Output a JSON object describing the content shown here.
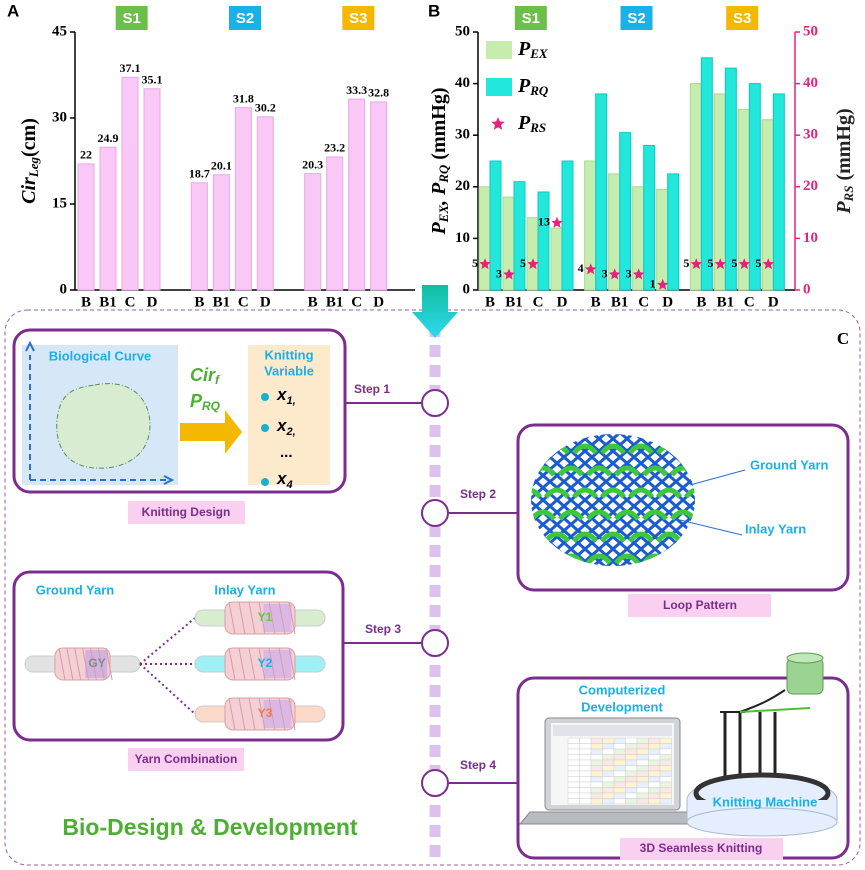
{
  "chart_data": [
    {
      "type": "bar",
      "panel_label": "A",
      "ylabel": [
        {
          "text": "Cir"
        },
        {
          "text": "Leg",
          "sub": true
        },
        {
          "text": "(cm)"
        }
      ],
      "groups": [
        {
          "name": "S1",
          "color": "#6cc04a"
        },
        {
          "name": "S2",
          "color": "#1ab0e8"
        },
        {
          "name": "S3",
          "color": "#f5b800"
        }
      ],
      "categories": [
        "B",
        "B1",
        "C",
        "D",
        "B",
        "B1",
        "C",
        "D",
        "B",
        "B1",
        "C",
        "D"
      ],
      "values": [
        22,
        24.9,
        37.1,
        35.1,
        18.7,
        20.1,
        31.8,
        30.2,
        20.3,
        23.2,
        33.3,
        32.8
      ],
      "color": "#f9c8f6",
      "ylim": [
        0,
        45
      ],
      "yticks": [
        0,
        15,
        30,
        45
      ]
    },
    {
      "type": "bar",
      "panel_label": "B",
      "ylabel": [
        {
          "text": "P"
        },
        {
          "text": "EX",
          "sub": true
        },
        {
          "text": ", P"
        },
        {
          "text": "RQ",
          "sub": true
        },
        {
          "text": " (mmHg)"
        }
      ],
      "y2label": [
        {
          "text": "P"
        },
        {
          "text": "RS",
          "sub": true
        },
        {
          "text": " (mmHg)"
        }
      ],
      "groups": [
        {
          "name": "S1",
          "color": "#6cc04a"
        },
        {
          "name": "S2",
          "color": "#1ab0e8"
        },
        {
          "name": "S3",
          "color": "#f5b800"
        }
      ],
      "categories": [
        "B",
        "B1",
        "C",
        "D",
        "B",
        "B1",
        "C",
        "D",
        "B",
        "B1",
        "C",
        "D"
      ],
      "series": [
        {
          "name": "P",
          "sub": "EX",
          "color": "#c6ecae",
          "values": [
            20,
            18,
            14,
            12,
            25,
            22.5,
            20,
            19.5,
            40,
            38,
            35,
            33
          ]
        },
        {
          "name": "P",
          "sub": "RQ",
          "color": "#22e8dc",
          "values": [
            25,
            21,
            19,
            25,
            38,
            30.5,
            28,
            22.5,
            45,
            43,
            40,
            38
          ]
        },
        {
          "name": "P",
          "sub": "RS",
          "color": "#e8207e",
          "marker": "star",
          "axis": "y2",
          "values": [
            5,
            3,
            5,
            13,
            4,
            3,
            3,
            1,
            5,
            5,
            5,
            5
          ]
        }
      ],
      "legend": "upper left",
      "ylim": [
        0,
        50
      ],
      "yticks": [
        0,
        10,
        20,
        30,
        40,
        50
      ],
      "y2lim": [
        0,
        50
      ],
      "y2ticks": [
        0,
        10,
        20,
        30,
        40,
        50
      ],
      "y2color": "#e8207e"
    }
  ],
  "diagram": {
    "panel_label": "C",
    "title": "Bio-Design & Development",
    "steps": [
      "Step 1",
      "Step 2",
      "Step 3",
      "Step 4"
    ],
    "design": {
      "curve": "Biological Curve",
      "inputs": [
        [
          "Cir",
          "f"
        ],
        [
          "P",
          "RQ"
        ]
      ],
      "variable_title": [
        "Knitting",
        "Variable"
      ],
      "variables": [
        [
          "x",
          "1,"
        ],
        [
          "x",
          "2,"
        ],
        [
          "..."
        ],
        [
          "x",
          "4"
        ]
      ],
      "caption": "Knitting Design"
    },
    "loop": {
      "ground": "Ground Yarn",
      "inlay": "Inlay Yarn",
      "caption": "Loop Pattern"
    },
    "yarn": {
      "ground": "Ground Yarn",
      "inlay": "Inlay Yarn",
      "gy": "GY",
      "inlays": [
        "Y1",
        "Y2",
        "Y3"
      ],
      "caption": "Yarn Combination"
    },
    "knit": {
      "computer": [
        "Computerized",
        "Development"
      ],
      "machine": "Knitting Machine",
      "caption": "3D Seamless Knitting"
    }
  }
}
